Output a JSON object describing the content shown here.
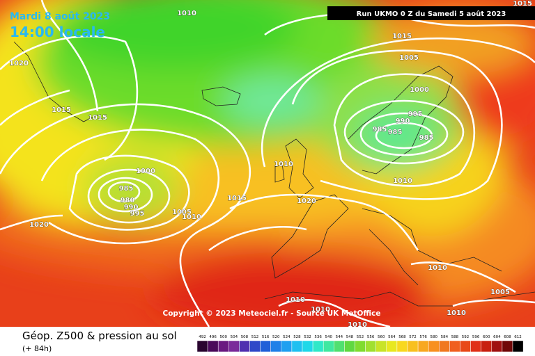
{
  "header": {
    "date": "Mardi 8 août 2023",
    "time": "14:00 locale",
    "run": "Run UKMO 0 Z du Samedi 5 août 2023"
  },
  "copyright": "Copyright © 2023 Meteociel.fr - Source UK MetOffice",
  "footer": {
    "title": "Géop. Z500 & pression au sol",
    "lead": "(+ 84h)"
  },
  "scale_labels": [
    492,
    496,
    500,
    504,
    508,
    512,
    516,
    520,
    524,
    528,
    532,
    536,
    540,
    544,
    548,
    552,
    556,
    560,
    564,
    568,
    572,
    576,
    580,
    584,
    588,
    592,
    596,
    600,
    604,
    608,
    612
  ],
  "isobar_labels": [
    "1010",
    "1015",
    "1015",
    "1020",
    "1005",
    "1000",
    "1015",
    "1015",
    "995",
    "990",
    "985",
    "985",
    "985",
    "1000",
    "1010",
    "1010",
    "985",
    "980",
    "990",
    "995",
    "1005",
    "1010",
    "1015",
    "1020",
    "1020",
    "1010",
    "1005",
    "1010",
    "1010",
    "1010",
    "1010"
  ]
}
